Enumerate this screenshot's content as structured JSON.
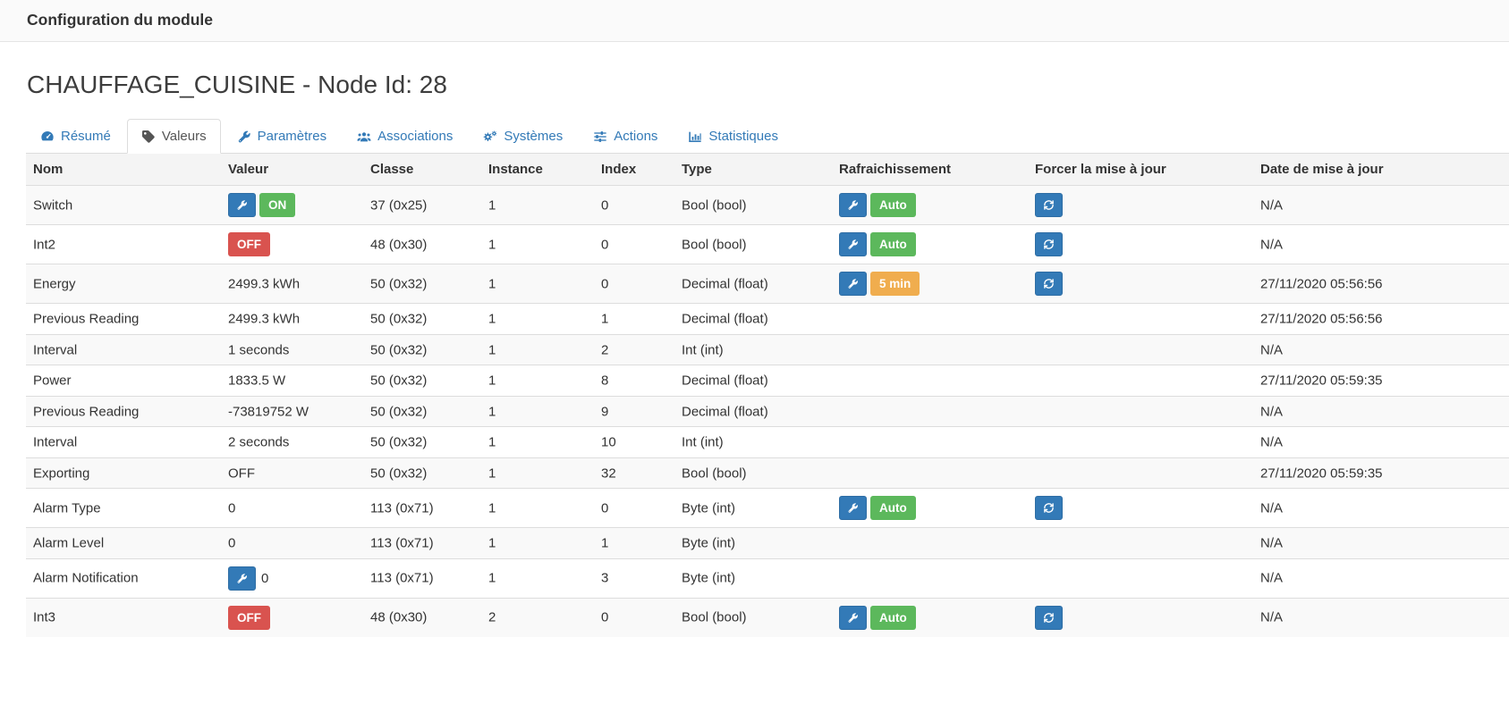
{
  "window": {
    "title": "Configuration du module"
  },
  "page": {
    "title": "CHAUFFAGE_CUISINE - Node Id: 28"
  },
  "colors": {
    "accent_blue": "#337ab7",
    "green": "#5cb85c",
    "red": "#d9534f",
    "orange": "#f0ad4e"
  },
  "tabs": [
    {
      "label": "Résumé",
      "icon": "tachometer",
      "active": false
    },
    {
      "label": "Valeurs",
      "icon": "tag",
      "active": true
    },
    {
      "label": "Paramètres",
      "icon": "wrench",
      "active": false
    },
    {
      "label": "Associations",
      "icon": "users",
      "active": false
    },
    {
      "label": "Systèmes",
      "icon": "cogs",
      "active": false
    },
    {
      "label": "Actions",
      "icon": "sliders",
      "active": false
    },
    {
      "label": "Statistiques",
      "icon": "bar-chart",
      "active": false
    }
  ],
  "table": {
    "columns": [
      "Nom",
      "Valeur",
      "Classe",
      "Instance",
      "Index",
      "Type",
      "Rafraichissement",
      "Forcer la mise à jour",
      "Date de mise à jour"
    ],
    "rows": [
      {
        "name": "Switch",
        "value": {
          "wrench": true,
          "badge": {
            "label": "ON",
            "color": "green"
          }
        },
        "classe": "37 (0x25)",
        "instance": "1",
        "index": "0",
        "type": "Bool (bool)",
        "refresh": {
          "wrench": true,
          "badge": {
            "label": "Auto",
            "color": "green"
          }
        },
        "force": true,
        "date": "N/A"
      },
      {
        "name": "Int2",
        "value": {
          "badge": {
            "label": "OFF",
            "color": "red"
          }
        },
        "classe": "48 (0x30)",
        "instance": "1",
        "index": "0",
        "type": "Bool (bool)",
        "refresh": {
          "wrench": true,
          "badge": {
            "label": "Auto",
            "color": "green"
          }
        },
        "force": true,
        "date": "N/A"
      },
      {
        "name": "Energy",
        "value": {
          "text": "2499.3 kWh"
        },
        "classe": "50 (0x32)",
        "instance": "1",
        "index": "0",
        "type": "Decimal (float)",
        "refresh": {
          "wrench": true,
          "badge": {
            "label": "5 min",
            "color": "orange"
          }
        },
        "force": true,
        "date": "27/11/2020 05:56:56"
      },
      {
        "name": "Previous Reading",
        "value": {
          "text": "2499.3 kWh"
        },
        "classe": "50 (0x32)",
        "instance": "1",
        "index": "1",
        "type": "Decimal (float)",
        "refresh": null,
        "force": false,
        "date": "27/11/2020 05:56:56"
      },
      {
        "name": "Interval",
        "value": {
          "text": "1 seconds"
        },
        "classe": "50 (0x32)",
        "instance": "1",
        "index": "2",
        "type": "Int (int)",
        "refresh": null,
        "force": false,
        "date": "N/A"
      },
      {
        "name": "Power",
        "value": {
          "text": "1833.5 W"
        },
        "classe": "50 (0x32)",
        "instance": "1",
        "index": "8",
        "type": "Decimal (float)",
        "refresh": null,
        "force": false,
        "date": "27/11/2020 05:59:35"
      },
      {
        "name": "Previous Reading",
        "value": {
          "text": "-73819752 W"
        },
        "classe": "50 (0x32)",
        "instance": "1",
        "index": "9",
        "type": "Decimal (float)",
        "refresh": null,
        "force": false,
        "date": "N/A"
      },
      {
        "name": "Interval",
        "value": {
          "text": "2 seconds"
        },
        "classe": "50 (0x32)",
        "instance": "1",
        "index": "10",
        "type": "Int (int)",
        "refresh": null,
        "force": false,
        "date": "N/A"
      },
      {
        "name": "Exporting",
        "value": {
          "text": "OFF"
        },
        "classe": "50 (0x32)",
        "instance": "1",
        "index": "32",
        "type": "Bool (bool)",
        "refresh": null,
        "force": false,
        "date": "27/11/2020 05:59:35"
      },
      {
        "name": "Alarm Type",
        "value": {
          "text": "0"
        },
        "classe": "113 (0x71)",
        "instance": "1",
        "index": "0",
        "type": "Byte (int)",
        "refresh": {
          "wrench": true,
          "badge": {
            "label": "Auto",
            "color": "green"
          }
        },
        "force": true,
        "date": "N/A"
      },
      {
        "name": "Alarm Level",
        "value": {
          "text": "0"
        },
        "classe": "113 (0x71)",
        "instance": "1",
        "index": "1",
        "type": "Byte (int)",
        "refresh": null,
        "force": false,
        "date": "N/A"
      },
      {
        "name": "Alarm Notification",
        "value": {
          "wrench": true,
          "text": "0"
        },
        "classe": "113 (0x71)",
        "instance": "1",
        "index": "3",
        "type": "Byte (int)",
        "refresh": null,
        "force": false,
        "date": "N/A"
      },
      {
        "name": "Int3",
        "value": {
          "badge": {
            "label": "OFF",
            "color": "red"
          }
        },
        "classe": "48 (0x30)",
        "instance": "2",
        "index": "0",
        "type": "Bool (bool)",
        "refresh": {
          "wrench": true,
          "badge": {
            "label": "Auto",
            "color": "green"
          }
        },
        "force": true,
        "date": "N/A"
      }
    ]
  }
}
